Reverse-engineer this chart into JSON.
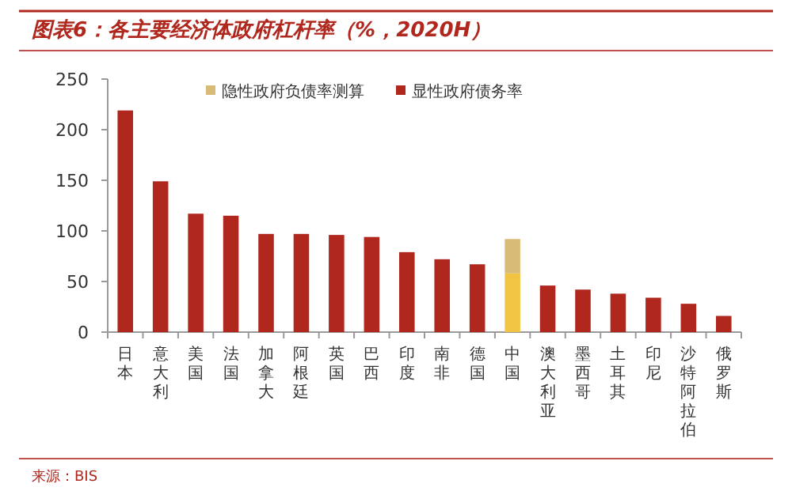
{
  "chart_data": {
    "type": "bar",
    "title": "图表6：各主要经济体政府杠杆率（%，2020H）",
    "stacked": true,
    "categories": [
      "日本",
      "意大利",
      "美国",
      "法国",
      "加拿大",
      "阿根廷",
      "英国",
      "巴西",
      "印度",
      "南非",
      "德国",
      "中国",
      "澳大利亚",
      "墨西哥",
      "土耳其",
      "印尼",
      "沙特阿拉伯",
      "俄罗斯"
    ],
    "series": [
      {
        "name": "显性政府债务率",
        "color": "#b0271e",
        "colors": [
          "#b0271e",
          "#b0271e",
          "#b0271e",
          "#b0271e",
          "#b0271e",
          "#b0271e",
          "#b0271e",
          "#b0271e",
          "#b0271e",
          "#b0271e",
          "#b0271e",
          "#f2c443",
          "#b0271e",
          "#b0271e",
          "#b0271e",
          "#b0271e",
          "#b0271e",
          "#b0271e"
        ],
        "values": [
          219,
          149,
          117,
          115,
          97,
          97,
          96,
          94,
          79,
          72,
          67,
          58,
          46,
          42,
          38,
          34,
          28,
          16
        ]
      },
      {
        "name": "隐性政府负债率测算",
        "color": "#d9bb78",
        "values": [
          null,
          null,
          null,
          null,
          null,
          null,
          null,
          null,
          null,
          null,
          null,
          34,
          null,
          null,
          null,
          null,
          null,
          null
        ]
      }
    ],
    "ylim": [
      0,
      250
    ],
    "yticks": [
      0,
      50,
      100,
      150,
      200,
      250
    ],
    "grid": false,
    "legend": "top",
    "annotations": [
      "来源：BIS"
    ]
  }
}
